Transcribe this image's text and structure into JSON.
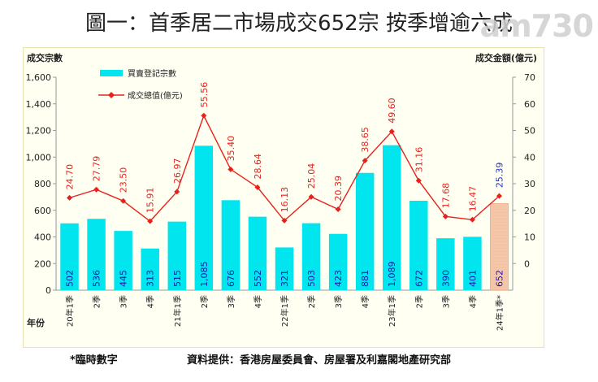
{
  "page": {
    "title": "圖一：首季居二市場成交652宗 按季增逾六成",
    "logo": "am730"
  },
  "footnotes": {
    "provisional": "*臨時數字",
    "source": "資料提供：香港房屋委員會、房屋署及利嘉閣地產研究部"
  },
  "chart_data": {
    "type": "bar",
    "title": "",
    "ylabel": "成交宗數",
    "y2label": "成交金額(億元)",
    "xlabel": "年份",
    "ylim": [
      0,
      1600
    ],
    "yticks": [
      "0",
      "200",
      "400",
      "600",
      "800",
      "1,000",
      "1,200",
      "1,400",
      "1,600"
    ],
    "y2lim": [
      -10,
      70
    ],
    "y2ticks": [
      "0",
      "10",
      "20",
      "30",
      "40",
      "50",
      "60",
      "70"
    ],
    "categories": [
      "20年1季",
      "2季",
      "3季",
      "4季",
      "21年1季",
      "2季",
      "3季",
      "4季",
      "22年1季",
      "2季",
      "3季",
      "4季",
      "23年1季",
      "2季",
      "3季",
      "4季",
      "24年1季*"
    ],
    "series": [
      {
        "name": "買賣登記宗數",
        "type": "bar",
        "values": [
          502,
          536,
          445,
          313,
          515,
          1085,
          676,
          552,
          321,
          503,
          423,
          881,
          1089,
          672,
          390,
          401,
          652
        ],
        "labels": [
          "502",
          "536",
          "445",
          "313",
          "515",
          "1,085",
          "676",
          "552",
          "321",
          "503",
          "423",
          "881",
          "1,089",
          "672",
          "390",
          "401",
          "652"
        ],
        "color": "#00e5ee",
        "provisional_color": "#f5c6a8",
        "label_color": "#1a1ab0"
      },
      {
        "name": "成交總值(億元)",
        "type": "line",
        "axis": "right",
        "values": [
          24.7,
          27.79,
          23.5,
          15.91,
          26.97,
          55.56,
          35.4,
          28.64,
          16.13,
          25.04,
          20.39,
          38.65,
          49.6,
          31.16,
          17.68,
          16.47,
          25.39
        ],
        "labels": [
          "24.70",
          "27.79",
          "23.50",
          "15.91",
          "26.97",
          "55.56",
          "35.40",
          "28.64",
          "16.13",
          "25.04",
          "20.39",
          "38.65",
          "49.60",
          "31.16",
          "17.68",
          "16.47",
          "25.39"
        ],
        "color": "#e8211d",
        "provisional_label_color": "#2233cc"
      }
    ],
    "grid": false,
    "legend": "top-left"
  },
  "colors": {
    "axis": "#999999",
    "text": "#111111",
    "background": "#fffff2"
  }
}
